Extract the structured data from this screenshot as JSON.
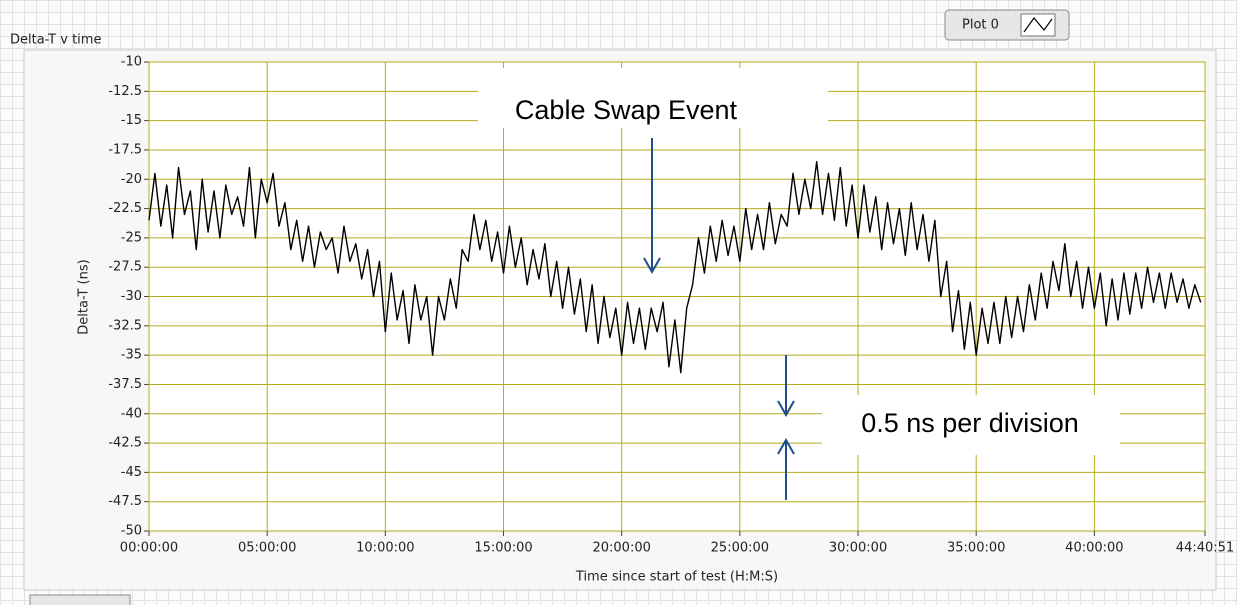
{
  "chart_data": {
    "type": "line",
    "title": "Delta-T v time",
    "x_label": "Time since start of test (H:M:S)",
    "y_label": "Delta-T (ns)",
    "legend": "top-right",
    "grid": true,
    "annotations": [
      "Cable Swap Event",
      "0.5 ns per division"
    ],
    "xlim": [
      0,
      160851
    ],
    "xticks": [
      {
        "value": 0,
        "label": "00:00:00"
      },
      {
        "value": 18000,
        "label": "05:00:00"
      },
      {
        "value": 36000,
        "label": "10:00:00"
      },
      {
        "value": 54000,
        "label": "15:00:00"
      },
      {
        "value": 72000,
        "label": "20:00:00"
      },
      {
        "value": 90000,
        "label": "25:00:00"
      },
      {
        "value": 108000,
        "label": "30:00:00"
      },
      {
        "value": 126000,
        "label": "35:00:00"
      },
      {
        "value": 144000,
        "label": "40:00:00"
      },
      {
        "value": 160851,
        "label": "44:40:51"
      }
    ],
    "ylim": [
      -50,
      -10
    ],
    "yticks": [
      -10,
      -12.5,
      -15,
      -17.5,
      -20,
      -22.5,
      -25,
      -27.5,
      -30,
      -32.5,
      -35,
      -37.5,
      -40,
      -42.5,
      -45,
      -47.5,
      -50
    ],
    "x": [
      0,
      900,
      1800,
      2700,
      3600,
      4500,
      5400,
      6300,
      7200,
      8100,
      9000,
      9900,
      10800,
      11700,
      12600,
      13500,
      14400,
      15300,
      16200,
      17100,
      18000,
      18900,
      19800,
      20700,
      21600,
      22500,
      23400,
      24300,
      25200,
      26100,
      27000,
      27900,
      28800,
      29700,
      30600,
      31500,
      32400,
      33300,
      34200,
      35100,
      36000,
      36900,
      37800,
      38700,
      39600,
      40500,
      41400,
      42300,
      43200,
      44100,
      45000,
      45900,
      46800,
      47700,
      48600,
      49500,
      50400,
      51300,
      52200,
      53100,
      54000,
      54900,
      55800,
      56700,
      57600,
      58500,
      59400,
      60300,
      61200,
      62100,
      63000,
      63900,
      64800,
      65700,
      66600,
      67500,
      68400,
      69300,
      70200,
      71100,
      72000,
      72900,
      73800,
      74700,
      75600,
      76500,
      77400,
      78300,
      79200,
      80100,
      81000,
      81900,
      82800,
      83700,
      84600,
      85500,
      86400,
      87300,
      88200,
      89100,
      90000,
      90900,
      91800,
      92700,
      93600,
      94500,
      95400,
      96300,
      97200,
      98100,
      99000,
      99900,
      100800,
      101700,
      102600,
      103500,
      104400,
      105300,
      106200,
      107100,
      108000,
      108900,
      109800,
      110700,
      111600,
      112500,
      113400,
      114300,
      115200,
      116100,
      117000,
      117900,
      118800,
      119700,
      120600,
      121500,
      122400,
      123300,
      124200,
      125100,
      126000,
      126900,
      127800,
      128700,
      129600,
      130500,
      131400,
      132300,
      133200,
      134100,
      135000,
      135900,
      136800,
      137700,
      138600,
      139500,
      140400,
      141300,
      142200,
      143100,
      144000,
      144900,
      145800,
      146700,
      147600,
      148500,
      149400,
      150300,
      151200,
      152100,
      153000,
      153900,
      154800,
      155700,
      156600,
      157500,
      158400,
      159300,
      160200
    ],
    "series": [
      {
        "name": "Plot 0",
        "color": "#000000",
        "values": [
          -23.5,
          -19.5,
          -24,
          -20.5,
          -25,
          -19,
          -23,
          -21,
          -26,
          -20,
          -24.5,
          -21,
          -25,
          -20.5,
          -23,
          -21.5,
          -24,
          -19,
          -25,
          -20,
          -22,
          -19.5,
          -24,
          -22,
          -26,
          -23.5,
          -27,
          -24,
          -27.5,
          -24.5,
          -26,
          -25,
          -28,
          -24,
          -27,
          -25.5,
          -28.5,
          -26,
          -30,
          -27,
          -33,
          -28,
          -32,
          -29.5,
          -34,
          -29,
          -32,
          -30,
          -35,
          -30,
          -32,
          -28.5,
          -31,
          -26,
          -27,
          -23,
          -26,
          -23.5,
          -27,
          -24.5,
          -28,
          -24,
          -27.5,
          -25,
          -29,
          -26,
          -28.5,
          -25.5,
          -30,
          -27,
          -31,
          -27.5,
          -31.5,
          -28.5,
          -33,
          -29,
          -34,
          -30,
          -33.5,
          -31,
          -35,
          -30.5,
          -34,
          -31,
          -34.5,
          -31,
          -33,
          -30.5,
          -36,
          -32,
          -36.5,
          -31,
          -29,
          -25,
          -28,
          -24,
          -27,
          -23.5,
          -26.5,
          -24,
          -27,
          -22.5,
          -26,
          -23,
          -26,
          -22,
          -25.5,
          -23,
          -24,
          -19.5,
          -23,
          -20,
          -22.5,
          -18.5,
          -23,
          -19.5,
          -23.5,
          -19,
          -24,
          -20.5,
          -25,
          -20.5,
          -24.5,
          -21.5,
          -26,
          -22,
          -25.5,
          -22.5,
          -26.5,
          -22,
          -26,
          -23,
          -27,
          -23.5,
          -30,
          -27,
          -33,
          -29.5,
          -34.5,
          -30.5,
          -35,
          -31,
          -34,
          -30.5,
          -34,
          -30,
          -33.5,
          -30,
          -33,
          -29,
          -32,
          -28,
          -31,
          -27,
          -29.5,
          -25.5,
          -30,
          -27,
          -31,
          -27.5,
          -31,
          -28,
          -32.5,
          -28.5,
          -32,
          -28,
          -31.5,
          -28,
          -31,
          -27.5,
          -30.5,
          -28,
          -31,
          -28,
          -30.5,
          -28.5,
          -31,
          -29,
          -30.5
        ]
      }
    ]
  }
}
